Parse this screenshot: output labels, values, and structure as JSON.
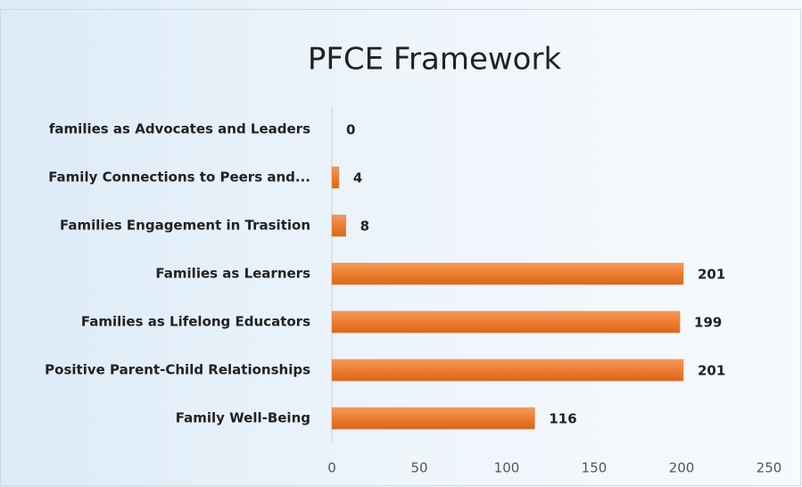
{
  "chart_data": {
    "type": "bar",
    "orientation": "horizontal",
    "title": "PFCE Framework",
    "categories": [
      "families as Advocates and Leaders",
      "Family Connections to Peers and...",
      "Families Engagement in Trasition",
      "Families as Learners",
      "Families as Lifelong Educators",
      "Positive Parent-Child Relationships",
      "Family Well-Being"
    ],
    "values": [
      0,
      4,
      8,
      201,
      199,
      201,
      116
    ],
    "color": "#ed7d31",
    "xlim": [
      0,
      250
    ],
    "xticks": [
      0,
      50,
      100,
      150,
      200,
      250
    ],
    "grid": false
  }
}
